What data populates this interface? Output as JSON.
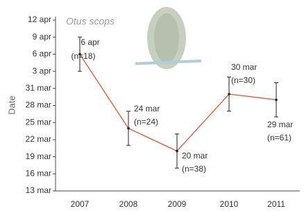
{
  "chart_data": {
    "type": "line",
    "title": "Otus scops",
    "y_label": "Date",
    "categories": [
      "2007",
      "2008",
      "2009",
      "2010",
      "2011"
    ],
    "values": [
      96,
      83,
      79,
      89,
      88
    ],
    "value_labels": [
      "6 apr",
      "24 mar",
      "20 mar",
      "30 mar",
      "29 mar"
    ],
    "n_labels": [
      "(n=18)",
      "(n=24)",
      "(n=38)",
      "(n=30)",
      "(n=61)"
    ],
    "errors": [
      3,
      3,
      3,
      3,
      3
    ],
    "color": "#e8502a",
    "ylim": [
      72,
      102
    ],
    "yticks": [
      {
        "value": 72,
        "label": "13 mar"
      },
      {
        "value": 75,
        "label": "16 mar"
      },
      {
        "value": 78,
        "label": "19 mar"
      },
      {
        "value": 81,
        "label": "22 mar"
      },
      {
        "value": 84,
        "label": "25 mar"
      },
      {
        "value": 87,
        "label": "28 mar"
      },
      {
        "value": 90,
        "label": "31 mar"
      },
      {
        "value": 93,
        "label": "3 apr"
      },
      {
        "value": 96,
        "label": "6 apr"
      },
      {
        "value": 99,
        "label": "9 apr"
      },
      {
        "value": 102,
        "label": "12 apr"
      }
    ]
  }
}
